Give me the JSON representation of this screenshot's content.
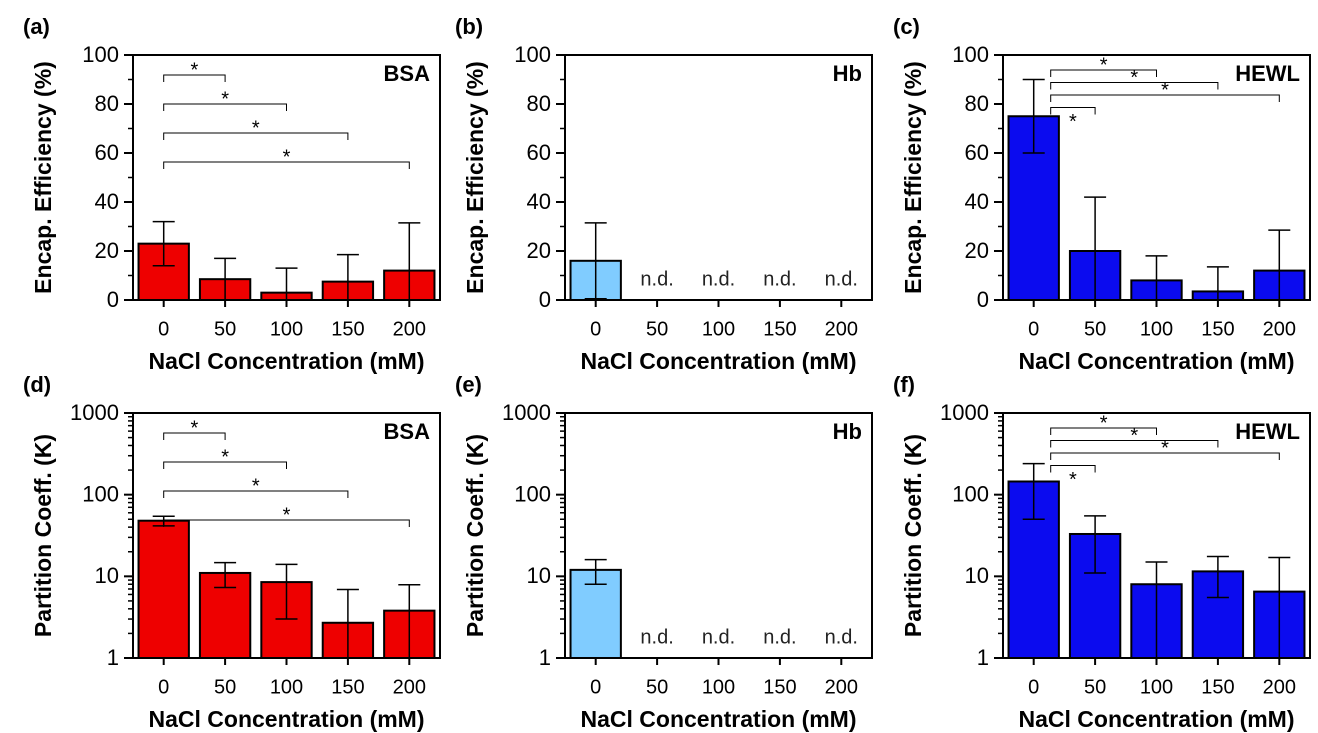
{
  "chart_data": [
    {
      "type": "bar",
      "panel_label": "(a)",
      "title": "BSA",
      "xlabel": "NaCl Concentration (mM)",
      "ylabel": "Encap. Efficiency (%)",
      "categories": [
        "0",
        "50",
        "100",
        "150",
        "200"
      ],
      "values": [
        23,
        8.5,
        3,
        7.5,
        12
      ],
      "errors": [
        9,
        8.5,
        10,
        11,
        19.5
      ],
      "color": "#ee0000",
      "yscale": "linear",
      "ylim": [
        0,
        100
      ],
      "yticks": [
        0,
        20,
        40,
        60,
        80,
        100
      ],
      "significance": [
        {
          "groups": [
            "0",
            "50"
          ],
          "label": "*"
        },
        {
          "groups": [
            "0",
            "100"
          ],
          "label": "*"
        },
        {
          "groups": [
            "0",
            "150"
          ],
          "label": "*"
        },
        {
          "groups": [
            "0",
            "200"
          ],
          "label": "*"
        }
      ]
    },
    {
      "type": "bar",
      "panel_label": "(b)",
      "title": "Hb",
      "xlabel": "NaCl Concentration (mM)",
      "ylabel": "Encap. Efficiency (%)",
      "categories": [
        "0",
        "50",
        "100",
        "150",
        "200"
      ],
      "values": [
        16,
        null,
        null,
        null,
        null
      ],
      "errors": [
        15.5,
        null,
        null,
        null,
        null
      ],
      "value_labels": [
        null,
        "n.d.",
        "n.d.",
        "n.d.",
        "n.d."
      ],
      "color": "#80ccff",
      "yscale": "linear",
      "ylim": [
        0,
        100
      ],
      "yticks": [
        0,
        20,
        40,
        60,
        80,
        100
      ]
    },
    {
      "type": "bar",
      "panel_label": "(c)",
      "title": "HEWL",
      "xlabel": "NaCl Concentration (mM)",
      "ylabel": "Encap. Efficiency (%)",
      "categories": [
        "0",
        "50",
        "100",
        "150",
        "200"
      ],
      "values": [
        75,
        20,
        8,
        3.5,
        12
      ],
      "errors": [
        15,
        22,
        10,
        10,
        16.5
      ],
      "color": "#0b0bef",
      "yscale": "linear",
      "ylim": [
        0,
        100
      ],
      "yticks": [
        0,
        20,
        40,
        60,
        80,
        100
      ],
      "significance": [
        {
          "groups": [
            "0",
            "100"
          ],
          "label": "*"
        },
        {
          "groups": [
            "0",
            "150"
          ],
          "label": "*"
        },
        {
          "groups": [
            "0",
            "200"
          ],
          "label": "*"
        },
        {
          "groups": [
            "0",
            "50"
          ],
          "label": "*"
        }
      ]
    },
    {
      "type": "bar",
      "panel_label": "(d)",
      "title": "BSA",
      "xlabel": "NaCl Concentration (mM)",
      "ylabel": "Partition Coeff. (K)",
      "categories": [
        "0",
        "50",
        "100",
        "150",
        "200"
      ],
      "values": [
        48,
        11,
        8.5,
        2.7,
        3.8
      ],
      "errors": [
        6.5,
        3.7,
        5.5,
        4.2,
        4.1
      ],
      "color": "#ee0000",
      "yscale": "log",
      "ylim": [
        1,
        1000
      ],
      "yticks": [
        1,
        10,
        100,
        1000
      ],
      "significance": [
        {
          "groups": [
            "0",
            "50"
          ],
          "label": "*"
        },
        {
          "groups": [
            "0",
            "100"
          ],
          "label": "*"
        },
        {
          "groups": [
            "0",
            "150"
          ],
          "label": "*"
        },
        {
          "groups": [
            "0",
            "200"
          ],
          "label": "*"
        }
      ]
    },
    {
      "type": "bar",
      "panel_label": "(e)",
      "title": "Hb",
      "xlabel": "NaCl Concentration (mM)",
      "ylabel": "Partition Coeff. (K)",
      "categories": [
        "0",
        "50",
        "100",
        "150",
        "200"
      ],
      "values": [
        12,
        null,
        null,
        null,
        null
      ],
      "errors": [
        4,
        null,
        null,
        null,
        null
      ],
      "value_labels": [
        null,
        "n.d.",
        "n.d.",
        "n.d.",
        "n.d."
      ],
      "color": "#80ccff",
      "yscale": "log",
      "ylim": [
        1,
        1000
      ],
      "yticks": [
        1,
        10,
        100,
        1000
      ]
    },
    {
      "type": "bar",
      "panel_label": "(f)",
      "title": "HEWL",
      "xlabel": "NaCl Concentration (mM)",
      "ylabel": "Partition Coeff. (K)",
      "categories": [
        "0",
        "50",
        "100",
        "150",
        "200"
      ],
      "values": [
        145,
        33,
        8,
        11.5,
        6.5
      ],
      "errors": [
        95,
        22,
        7,
        6,
        10.5
      ],
      "color": "#0b0bef",
      "yscale": "log",
      "ylim": [
        1,
        1000
      ],
      "yticks": [
        1,
        10,
        100,
        1000
      ],
      "significance": [
        {
          "groups": [
            "0",
            "100"
          ],
          "label": "*"
        },
        {
          "groups": [
            "0",
            "150"
          ],
          "label": "*"
        },
        {
          "groups": [
            "0",
            "200"
          ],
          "label": "*"
        },
        {
          "groups": [
            "0",
            "50"
          ],
          "label": "*"
        }
      ]
    }
  ]
}
